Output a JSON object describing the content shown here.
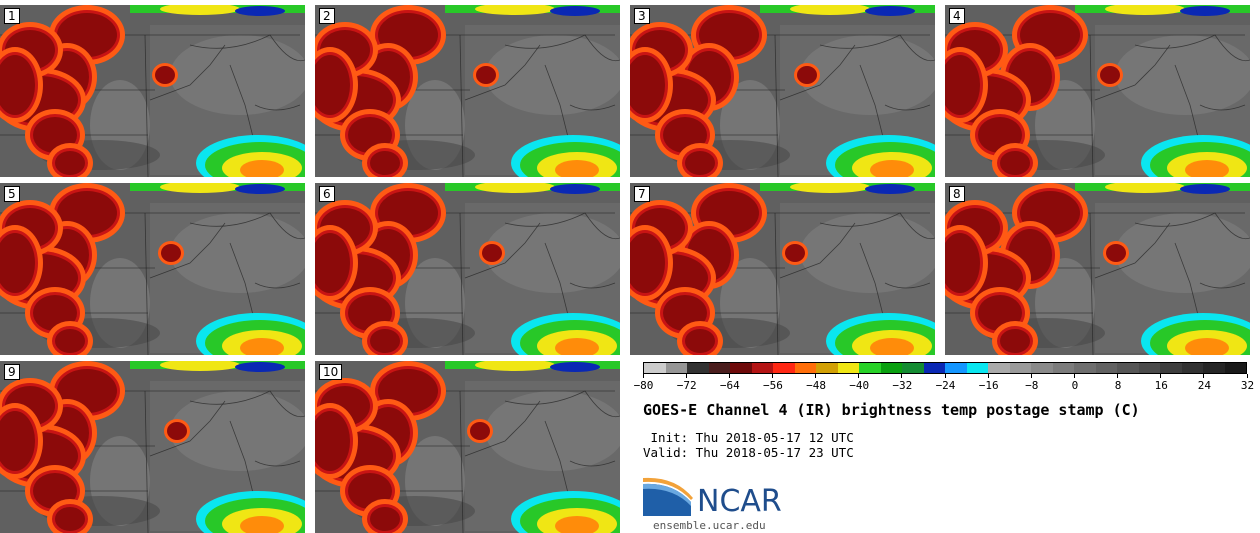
{
  "panels": [
    {
      "label": "1"
    },
    {
      "label": "2"
    },
    {
      "label": "3"
    },
    {
      "label": "4"
    },
    {
      "label": "5"
    },
    {
      "label": "6"
    },
    {
      "label": "7"
    },
    {
      "label": "8"
    },
    {
      "label": "9"
    },
    {
      "label": "10"
    }
  ],
  "colorbar": {
    "colors": [
      "#cccccc",
      "#969696",
      "#323232",
      "#4b1e1e",
      "#6e0a0a",
      "#b41414",
      "#ff2814",
      "#ff6e0a",
      "#d2a005",
      "#f0e614",
      "#28d228",
      "#0aa010",
      "#148c32",
      "#0a28b4",
      "#1496ff",
      "#0ae6f0",
      "#aaaaaa",
      "#9a9a9a",
      "#8a8a8a",
      "#7c7c7c",
      "#6e6e6e",
      "#626262",
      "#565656",
      "#4a4a4a",
      "#3e3e3e",
      "#323232",
      "#262626",
      "#1a1a1a"
    ],
    "range": [
      -80,
      40
    ],
    "tick_labels": [
      "−80",
      "−72",
      "−64",
      "−56",
      "−48",
      "−40",
      "−32",
      "−24",
      "−16",
      "−8",
      "0",
      "8",
      "16",
      "24",
      "32"
    ]
  },
  "title": "GOES-E Channel 4 (IR) brightness temp postage stamp (C)",
  "init_text": " Init: Thu 2018-05-17 12 UTC",
  "valid_text": "Valid: Thu 2018-05-17 23 UTC",
  "logo": {
    "word": "NCAR",
    "url": "ensemble.ucar.edu"
  }
}
